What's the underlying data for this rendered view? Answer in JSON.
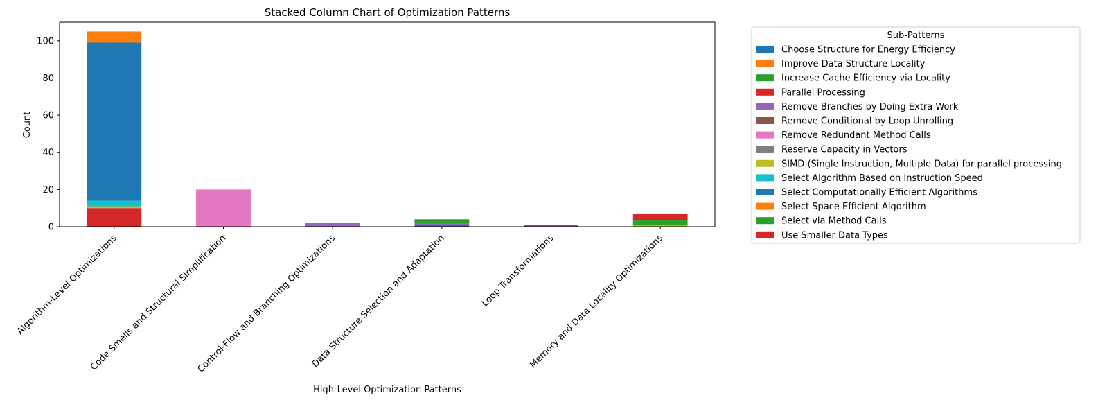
{
  "chart_data": {
    "type": "bar",
    "stacked": true,
    "title": "Stacked Column Chart of Optimization Patterns",
    "xlabel": "High-Level Optimization Patterns",
    "ylabel": "Count",
    "ylim": [
      0,
      110
    ],
    "yticks": [
      0,
      20,
      40,
      60,
      80,
      100
    ],
    "grid": false,
    "legend_position": "outside right",
    "legend_title": "Sub-Patterns",
    "categories": [
      "Algorithm-Level Optimizations",
      "Code Smells and Structural Simplification",
      "Control-Flow and Branching Optimizations",
      "Data Structure Selection and Adaptation",
      "Loop Transformations",
      "Memory and Data Locality Optimizations"
    ],
    "series": [
      {
        "name": "Choose Structure for Energy Efficiency",
        "color": "#1f77b4",
        "values": [
          0,
          0,
          0,
          1,
          0,
          0
        ]
      },
      {
        "name": "Improve Data Structure Locality",
        "color": "#ff7f0e",
        "values": [
          0,
          0,
          0,
          0,
          0,
          0
        ]
      },
      {
        "name": "Increase Cache Efficiency via Locality",
        "color": "#2ca02c",
        "values": [
          0,
          0,
          0,
          0,
          0,
          0
        ]
      },
      {
        "name": "Parallel Processing",
        "color": "#d62728",
        "values": [
          10,
          0,
          0,
          0,
          0,
          0
        ]
      },
      {
        "name": "Remove Branches by Doing Extra Work",
        "color": "#9467bd",
        "values": [
          0,
          0,
          2,
          1,
          0,
          0
        ]
      },
      {
        "name": "Remove Conditional by Loop Unrolling",
        "color": "#8c564b",
        "values": [
          0,
          0,
          0,
          0,
          1,
          0
        ]
      },
      {
        "name": "Remove Redundant Method Calls",
        "color": "#e377c2",
        "values": [
          0,
          20,
          0,
          0,
          0,
          0
        ]
      },
      {
        "name": "Reserve Capacity in Vectors",
        "color": "#7f7f7f",
        "values": [
          0,
          0,
          0,
          0,
          0,
          0
        ]
      },
      {
        "name": "SIMD (Single Instruction, Multiple Data) for parallel processing",
        "color": "#bcbd22",
        "values": [
          1,
          0,
          0,
          0,
          0,
          1
        ]
      },
      {
        "name": "Select Algorithm Based on Instruction Speed",
        "color": "#17becf",
        "values": [
          3,
          0,
          0,
          0,
          0,
          0
        ]
      },
      {
        "name": "Select Computationally Efficient Algorithms",
        "color": "#1f77b4",
        "values": [
          85,
          0,
          0,
          0,
          0,
          0
        ]
      },
      {
        "name": "Select Space Efficient Algorithm",
        "color": "#ff7f0e",
        "values": [
          6,
          0,
          0,
          0,
          0,
          0
        ]
      },
      {
        "name": "Select via Method Calls",
        "color": "#2ca02c",
        "values": [
          0,
          0,
          0,
          2,
          0,
          2.5
        ]
      },
      {
        "name": "Use Smaller Data Types",
        "color": "#d62728",
        "values": [
          0,
          0,
          0,
          0,
          0,
          3.5
        ]
      }
    ]
  }
}
